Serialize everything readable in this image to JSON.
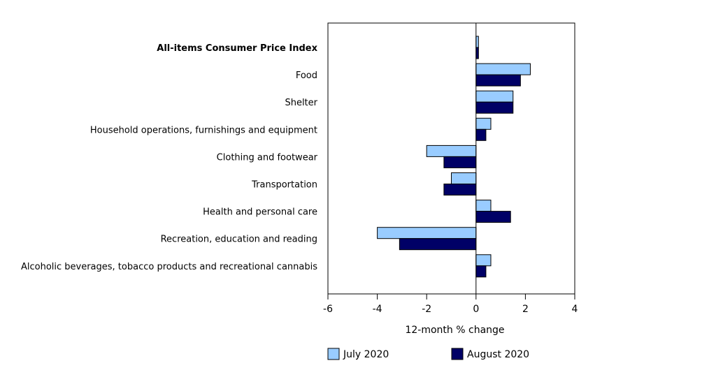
{
  "chart_data": {
    "type": "bar",
    "orientation": "horizontal",
    "categories": [
      "All-items Consumer Price Index",
      "Food",
      "Shelter",
      "Household operations, furnishings and equipment",
      "Clothing and footwear",
      "Transportation",
      "Health and personal care",
      "Recreation, education and reading",
      "Alcoholic beverages, tobacco products and recreational cannabis"
    ],
    "series": [
      {
        "name": "July 2020",
        "color": "#99ccff",
        "values": [
          0.1,
          2.2,
          1.5,
          0.6,
          -2.0,
          -1.0,
          0.6,
          -4.0,
          0.6
        ]
      },
      {
        "name": "August 2020",
        "color": "#000066",
        "values": [
          0.1,
          1.8,
          1.5,
          0.4,
          -1.3,
          -1.3,
          1.4,
          -3.1,
          0.4
        ]
      }
    ],
    "xlabel": "12-month % change",
    "xlim": [
      -6,
      4
    ],
    "xticks": [
      -6,
      -4,
      -2,
      0,
      2,
      4
    ],
    "legend_position": "bottom",
    "grid": false,
    "bold_first_category": true
  }
}
